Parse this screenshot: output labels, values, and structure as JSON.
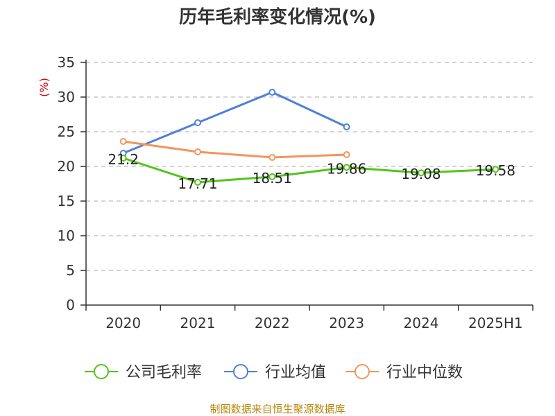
{
  "chart_data": {
    "type": "line",
    "title": "历年毛利率变化情况(%)",
    "ylabel": "(%)",
    "ylim": [
      0,
      35
    ],
    "yticks": [
      0,
      5,
      10,
      15,
      20,
      25,
      30,
      35
    ],
    "categories": [
      "2020",
      "2021",
      "2022",
      "2023",
      "2024",
      "2025H1"
    ],
    "grid": true,
    "legend_position": "bottom",
    "series": [
      {
        "name": "公司毛利率",
        "color": "#52c41a",
        "values": [
          21.2,
          17.71,
          18.51,
          19.86,
          19.08,
          19.58
        ],
        "labels": [
          "21.2",
          "17.71",
          "18.51",
          "19.86",
          "19.08",
          "19.58"
        ]
      },
      {
        "name": "行业均值",
        "color": "#4f7fd9",
        "values": [
          21.9,
          26.3,
          30.7,
          25.7,
          null,
          null
        ]
      },
      {
        "name": "行业中位数",
        "color": "#f5945c",
        "values": [
          23.6,
          22.1,
          21.3,
          21.7,
          null,
          null
        ]
      }
    ],
    "source": "制图数据来自恒生聚源数据库",
    "colors": {
      "unit": "#cc0000",
      "source": "#b8860b",
      "axis": "#333333",
      "grid": "#bbbbbb"
    }
  }
}
